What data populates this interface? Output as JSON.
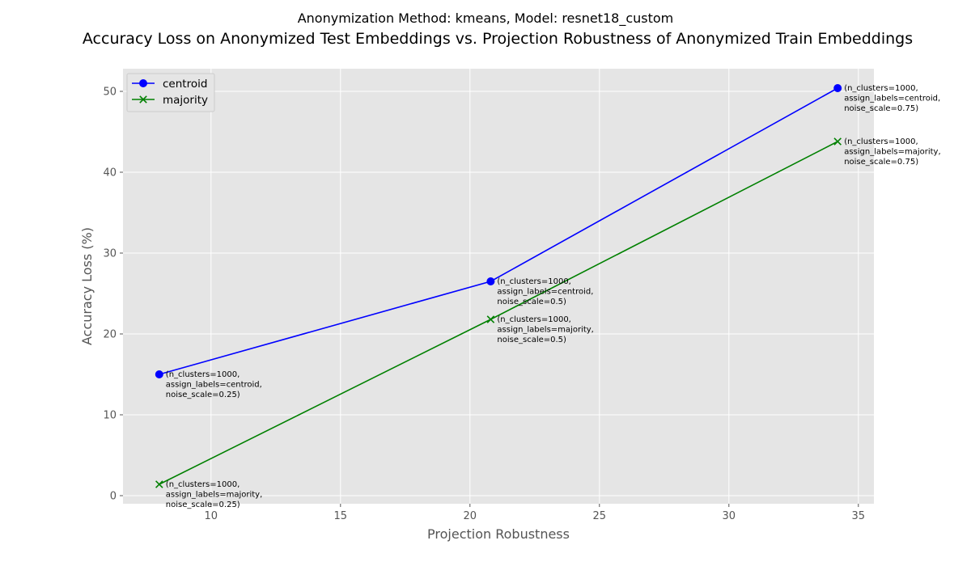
{
  "chart_data": {
    "type": "line",
    "suptitle": "Anonymization Method: kmeans, Model: resnet18_custom",
    "title": "Accuracy Loss on Anonymized Test Embeddings vs. Projection Robustness of Anonymized Train Embeddings",
    "xlabel": "Projection Robustness",
    "ylabel": "Accuracy Loss (%)",
    "xlim": [
      6.6,
      35.6
    ],
    "ylim": [
      -1,
      52.8
    ],
    "xticks": [
      10,
      15,
      20,
      25,
      30,
      35
    ],
    "yticks": [
      0,
      10,
      20,
      30,
      40,
      50
    ],
    "grid": true,
    "legend_position": "upper-left",
    "series": [
      {
        "name": "centroid",
        "color": "#0000ff",
        "marker": "circle",
        "points": [
          {
            "x": 8.0,
            "y": 15.0,
            "label": [
              "(n_clusters=1000,",
              "assign_labels=centroid,",
              "noise_scale=0.25)"
            ]
          },
          {
            "x": 20.8,
            "y": 26.5,
            "label": [
              "(n_clusters=1000,",
              "assign_labels=centroid,",
              "noise_scale=0.5)"
            ]
          },
          {
            "x": 34.2,
            "y": 50.4,
            "label": [
              "(n_clusters=1000,",
              "assign_labels=centroid,",
              "noise_scale=0.75)"
            ]
          }
        ]
      },
      {
        "name": "majority",
        "color": "#008000",
        "marker": "x",
        "points": [
          {
            "x": 8.0,
            "y": 1.4,
            "label": [
              "(n_clusters=1000,",
              "assign_labels=majority,",
              "noise_scale=0.25)"
            ]
          },
          {
            "x": 20.8,
            "y": 21.8,
            "label": [
              "(n_clusters=1000,",
              "assign_labels=majority,",
              "noise_scale=0.5)"
            ]
          },
          {
            "x": 34.2,
            "y": 43.8,
            "label": [
              "(n_clusters=1000,",
              "assign_labels=majority,",
              "noise_scale=0.75)"
            ]
          }
        ]
      }
    ]
  }
}
